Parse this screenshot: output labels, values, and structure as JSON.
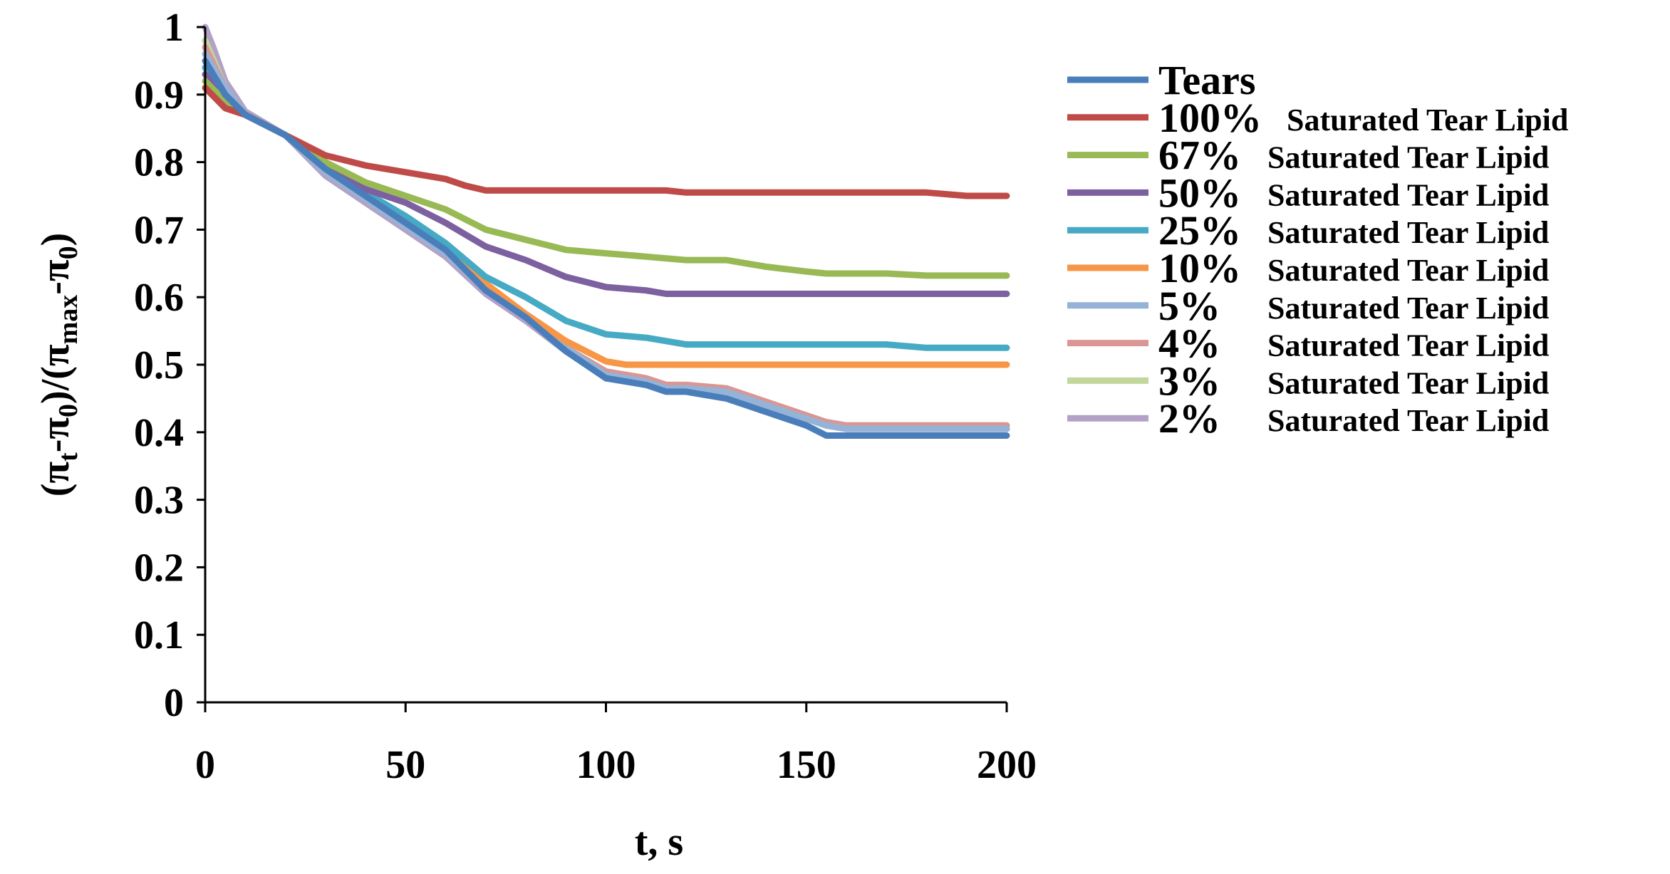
{
  "chart_data": {
    "type": "line",
    "title": "",
    "xlabel": "t, s",
    "ylabel": "(π_t-π_0)/(π_max-π_0)",
    "ylabel_parts": [
      "(π",
      "t",
      "-π",
      "0",
      ")/(π",
      "max",
      "-π",
      "0",
      ")"
    ],
    "xlim": [
      0,
      200
    ],
    "ylim": [
      0,
      1
    ],
    "x_ticks": [
      0,
      50,
      100,
      150,
      200
    ],
    "x_tick_labels": [
      "0",
      "50",
      "100",
      "150",
      "200"
    ],
    "y_ticks": [
      0,
      0.1,
      0.2,
      0.3,
      0.4,
      0.5,
      0.6,
      0.7,
      0.8,
      0.9,
      1
    ],
    "y_tick_labels": [
      "0",
      "0.1",
      "0.2",
      "0.3",
      "0.4",
      "0.5",
      "0.6",
      "0.7",
      "0.8",
      "0.9",
      "1"
    ],
    "grid": false,
    "legend_position": "right",
    "series": [
      {
        "name": "Tears",
        "pct": "Tears",
        "rest": "",
        "color": "#4a7ebb",
        "x": [
          0,
          5,
          10,
          20,
          30,
          40,
          50,
          60,
          70,
          80,
          90,
          100,
          110,
          115,
          120,
          130,
          140,
          150,
          155,
          160,
          170,
          180,
          190,
          200
        ],
        "y": [
          0.95,
          0.9,
          0.87,
          0.84,
          0.79,
          0.75,
          0.71,
          0.67,
          0.61,
          0.57,
          0.52,
          0.48,
          0.47,
          0.46,
          0.46,
          0.45,
          0.43,
          0.41,
          0.395,
          0.395,
          0.395,
          0.395,
          0.395,
          0.395
        ]
      },
      {
        "name": "100% Saturated Tear Lipid",
        "pct": "100%",
        "rest": "Saturated Tear Lipid",
        "color": "#be4b48",
        "x": [
          0,
          5,
          10,
          20,
          30,
          40,
          50,
          60,
          65,
          70,
          80,
          90,
          100,
          110,
          115,
          120,
          130,
          140,
          150,
          160,
          170,
          180,
          190,
          200
        ],
        "y": [
          0.91,
          0.88,
          0.87,
          0.84,
          0.81,
          0.795,
          0.785,
          0.775,
          0.765,
          0.758,
          0.758,
          0.758,
          0.758,
          0.758,
          0.758,
          0.755,
          0.755,
          0.755,
          0.755,
          0.755,
          0.755,
          0.755,
          0.75,
          0.75
        ]
      },
      {
        "name": "67% Saturated Tear Lipid",
        "pct": "67%",
        "rest": "Saturated Tear Lipid",
        "color": "#98b954",
        "x": [
          0,
          5,
          10,
          20,
          30,
          40,
          50,
          60,
          70,
          80,
          90,
          100,
          110,
          120,
          130,
          140,
          150,
          155,
          160,
          170,
          180,
          190,
          200
        ],
        "y": [
          0.92,
          0.89,
          0.87,
          0.84,
          0.8,
          0.77,
          0.75,
          0.73,
          0.7,
          0.685,
          0.67,
          0.665,
          0.66,
          0.655,
          0.655,
          0.645,
          0.638,
          0.635,
          0.635,
          0.635,
          0.632,
          0.632,
          0.632
        ]
      },
      {
        "name": "50% Saturated Tear Lipid",
        "pct": "50%",
        "rest": "Saturated Tear Lipid",
        "color": "#7d60a0",
        "x": [
          0,
          5,
          10,
          20,
          30,
          40,
          50,
          60,
          70,
          80,
          90,
          100,
          110,
          115,
          120,
          130,
          140,
          150,
          160,
          170,
          180,
          190,
          200
        ],
        "y": [
          0.93,
          0.89,
          0.87,
          0.84,
          0.8,
          0.76,
          0.74,
          0.71,
          0.675,
          0.655,
          0.63,
          0.615,
          0.61,
          0.605,
          0.605,
          0.605,
          0.605,
          0.605,
          0.605,
          0.605,
          0.605,
          0.605,
          0.605
        ]
      },
      {
        "name": "25% Saturated Tear Lipid",
        "pct": "25%",
        "rest": "Saturated Tear Lipid",
        "color": "#46aac4",
        "x": [
          0,
          5,
          10,
          20,
          30,
          40,
          50,
          60,
          70,
          80,
          90,
          100,
          110,
          115,
          120,
          130,
          140,
          150,
          160,
          170,
          180,
          190,
          200
        ],
        "y": [
          0.94,
          0.9,
          0.87,
          0.84,
          0.79,
          0.755,
          0.72,
          0.68,
          0.63,
          0.6,
          0.565,
          0.545,
          0.54,
          0.535,
          0.53,
          0.53,
          0.53,
          0.53,
          0.53,
          0.53,
          0.525,
          0.525,
          0.525
        ]
      },
      {
        "name": "10% Saturated Tear Lipid",
        "pct": "10%",
        "rest": "Saturated Tear Lipid",
        "color": "#f79646",
        "x": [
          0,
          5,
          10,
          20,
          30,
          40,
          50,
          60,
          70,
          80,
          90,
          95,
          100,
          105,
          110,
          120,
          130,
          140,
          150,
          160,
          170,
          180,
          190,
          200
        ],
        "y": [
          0.94,
          0.9,
          0.87,
          0.84,
          0.79,
          0.75,
          0.715,
          0.675,
          0.62,
          0.575,
          0.535,
          0.52,
          0.505,
          0.5,
          0.5,
          0.5,
          0.5,
          0.5,
          0.5,
          0.5,
          0.5,
          0.5,
          0.5,
          0.5
        ]
      },
      {
        "name": "5% Saturated Tear Lipid",
        "pct": "5%",
        "rest": "Saturated Tear Lipid",
        "color": "#95b3d7",
        "x": [
          0,
          5,
          10,
          20,
          30,
          40,
          50,
          60,
          70,
          80,
          90,
          100,
          110,
          115,
          120,
          130,
          140,
          150,
          155,
          160,
          170,
          180,
          190,
          200
        ],
        "y": [
          0.96,
          0.91,
          0.87,
          0.84,
          0.785,
          0.745,
          0.705,
          0.665,
          0.61,
          0.57,
          0.525,
          0.485,
          0.475,
          0.465,
          0.465,
          0.46,
          0.44,
          0.42,
          0.41,
          0.405,
          0.405,
          0.405,
          0.405,
          0.405
        ]
      },
      {
        "name": "4% Saturated Tear Lipid",
        "pct": "4%",
        "rest": "Saturated Tear Lipid",
        "color": "#d99694",
        "x": [
          0,
          5,
          10,
          20,
          30,
          40,
          50,
          60,
          70,
          80,
          90,
          100,
          110,
          115,
          120,
          130,
          140,
          150,
          155,
          160,
          170,
          180,
          190,
          200
        ],
        "y": [
          0.97,
          0.91,
          0.87,
          0.84,
          0.785,
          0.745,
          0.705,
          0.665,
          0.61,
          0.57,
          0.525,
          0.49,
          0.48,
          0.47,
          0.47,
          0.465,
          0.445,
          0.425,
          0.415,
          0.41,
          0.41,
          0.41,
          0.41,
          0.41
        ]
      },
      {
        "name": "3% Saturated Tear Lipid",
        "pct": "3%",
        "rest": "Saturated Tear Lipid",
        "color": "#c3d69b",
        "x": [
          0,
          5,
          10,
          20,
          30,
          40,
          50,
          60,
          70,
          80,
          90,
          100,
          110,
          115,
          120,
          130,
          140,
          150,
          155,
          160,
          170,
          180,
          190,
          200
        ],
        "y": [
          0.98,
          0.91,
          0.87,
          0.84,
          0.785,
          0.745,
          0.705,
          0.665,
          0.61,
          0.57,
          0.525,
          0.49,
          0.48,
          0.47,
          0.47,
          0.465,
          0.445,
          0.425,
          0.415,
          0.41,
          0.41,
          0.41,
          0.41,
          0.41
        ]
      },
      {
        "name": "2% Saturated Tear Lipid",
        "pct": "2%",
        "rest": "Saturated Tear Lipid",
        "color": "#b3a2c7",
        "x": [
          0,
          2,
          5,
          10,
          20,
          30,
          40,
          50,
          60,
          70,
          80,
          90,
          100,
          110,
          115,
          120,
          130,
          140,
          150,
          155,
          160,
          170,
          180,
          190,
          200
        ],
        "y": [
          1.0,
          0.97,
          0.92,
          0.875,
          0.84,
          0.78,
          0.74,
          0.7,
          0.66,
          0.605,
          0.565,
          0.52,
          0.485,
          0.475,
          0.465,
          0.465,
          0.46,
          0.44,
          0.42,
          0.41,
          0.405,
          0.405,
          0.405,
          0.405,
          0.405
        ]
      }
    ]
  }
}
